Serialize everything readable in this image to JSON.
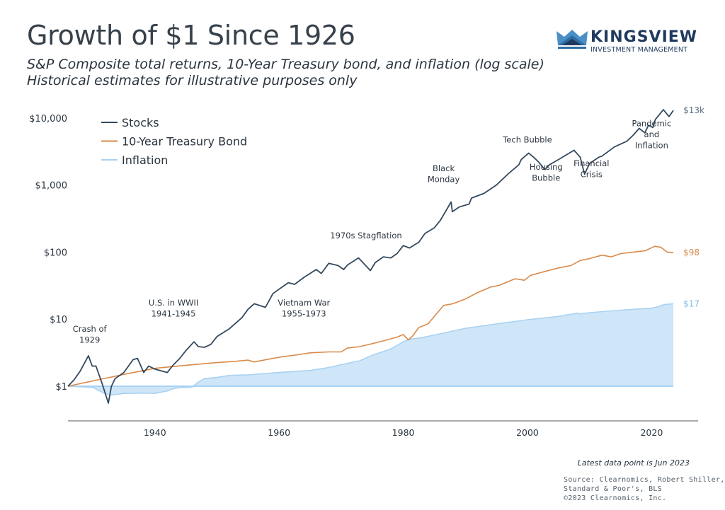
{
  "header": {
    "title": "Growth of $1 Since 1926",
    "subtitle_line1": "S&P Composite total returns, 10-Year Treasury bond, and inflation (log scale)",
    "subtitle_line2": "Historical estimates for illustrative purposes only"
  },
  "logo": {
    "name": "KINGSVIEW",
    "tagline": "INVESTMENT MANAGEMENT",
    "colors": {
      "dark": "#1f3a5f",
      "mid": "#2e6da4",
      "light": "#4a90c8"
    }
  },
  "footer": {
    "latest_note": "Latest data point is Jun 2023",
    "source_lines": [
      "Source: Clearnomics, Robert Shiller,",
      "Standard & Poor's, BLS",
      "©2023 Clearnomics, Inc."
    ]
  },
  "chart_data": {
    "type": "line",
    "title": "Growth of $1 Since 1926",
    "xlabel": "",
    "ylabel": "",
    "yscale": "log",
    "xlim": [
      1926,
      2023.5
    ],
    "ylim": [
      0.3,
      20000
    ],
    "x_ticks": [
      1940,
      1960,
      1980,
      2000,
      2020
    ],
    "y_ticks": [
      {
        "value": 1,
        "label": "$1"
      },
      {
        "value": 10,
        "label": "$10"
      },
      {
        "value": 100,
        "label": "$100"
      },
      {
        "value": 1000,
        "label": "$1,000"
      },
      {
        "value": 10000,
        "label": "$10,000"
      }
    ],
    "grid": false,
    "legend_position": "top-left",
    "series": [
      {
        "name": "Stocks",
        "color": "#34495e",
        "style": "line",
        "end_label": "$13k",
        "x": [
          1926,
          1927,
          1928,
          1929.3,
          1929.9,
          1930.5,
          1931.5,
          1932.5,
          1933,
          1933.6,
          1935,
          1936.5,
          1937.2,
          1938.2,
          1939,
          1940,
          1941,
          1942,
          1943,
          1944,
          1945,
          1946.3,
          1947,
          1948,
          1949,
          1950,
          1952,
          1954,
          1955,
          1956,
          1957.8,
          1959,
          1960,
          1961.5,
          1962.5,
          1964,
          1966,
          1966.8,
          1968,
          1969.5,
          1970.4,
          1971,
          1972.8,
          1974.7,
          1975.5,
          1976.8,
          1978,
          1979,
          1980,
          1981,
          1982.5,
          1983.5,
          1985,
          1986,
          1987.7,
          1987.9,
          1989,
          1990.6,
          1991,
          1993,
          1995,
          1997,
          1998.6,
          1999,
          2000.2,
          2001,
          2001.8,
          2002.8,
          2003.5,
          2005,
          2007.5,
          2008.5,
          2009.2,
          2010,
          2011.5,
          2012,
          2014,
          2016,
          2017,
          2018,
          2018.9,
          2019.5,
          2020.2,
          2020.6,
          2021.9,
          2022.8,
          2023.5
        ],
        "y": [
          1,
          1.25,
          1.7,
          2.85,
          2.0,
          2.0,
          1.1,
          0.56,
          1.0,
          1.3,
          1.6,
          2.5,
          2.6,
          1.6,
          2.0,
          1.8,
          1.7,
          1.6,
          2.1,
          2.6,
          3.4,
          4.6,
          3.9,
          3.8,
          4.2,
          5.5,
          7.2,
          10.5,
          14,
          17,
          15,
          24,
          28,
          35,
          33,
          42,
          55,
          48,
          68,
          63,
          55,
          64,
          82,
          53,
          70,
          85,
          82,
          95,
          125,
          115,
          140,
          190,
          230,
          300,
          560,
          400,
          470,
          520,
          640,
          750,
          1000,
          1500,
          2000,
          2400,
          3000,
          2600,
          2200,
          1700,
          2000,
          2400,
          3300,
          2600,
          1450,
          2100,
          2600,
          2700,
          3700,
          4500,
          5500,
          7000,
          6000,
          7800,
          7200,
          9500,
          13300,
          10500,
          13000
        ]
      },
      {
        "name": "10-Year Treasury Bond",
        "color": "#d98a4a",
        "style": "line",
        "end_label": "$98",
        "x": [
          1926,
          1930,
          1935,
          1940,
          1945,
          1950,
          1953,
          1955,
          1956,
          1958,
          1960,
          1963,
          1965,
          1968,
          1970,
          1971,
          1973,
          1975,
          1977,
          1979,
          1980,
          1980.8,
          1981.5,
          1982.5,
          1984,
          1985,
          1986.5,
          1988,
          1990,
          1992,
          1994,
          1995.5,
          1998,
          1999.5,
          2000.5,
          2003,
          2005,
          2007,
          2008.5,
          2010,
          2012,
          2013.5,
          2015,
          2017,
          2019,
          2020.5,
          2021.5,
          2022.5,
          2023.5
        ],
        "y": [
          1,
          1.2,
          1.5,
          1.85,
          2.05,
          2.25,
          2.35,
          2.45,
          2.3,
          2.5,
          2.7,
          2.95,
          3.15,
          3.25,
          3.25,
          3.7,
          3.9,
          4.3,
          4.8,
          5.4,
          5.9,
          4.9,
          5.6,
          7.5,
          8.5,
          11,
          16,
          17,
          20,
          25,
          30,
          32,
          40,
          38,
          45,
          52,
          58,
          63,
          75,
          80,
          90,
          85,
          95,
          100,
          105,
          122,
          118,
          100,
          98
        ]
      },
      {
        "name": "Inflation",
        "color": "#a9d2f2",
        "fill": "#cfe6f8",
        "style": "area",
        "end_label": "$17",
        "x": [
          1926,
          1928,
          1930,
          1931,
          1932,
          1933,
          1935,
          1938,
          1940,
          1942,
          1943,
          1944,
          1946,
          1947,
          1948,
          1950,
          1952,
          1955,
          1960,
          1965,
          1968,
          1970,
          1973,
          1975,
          1978,
          1980,
          1981,
          1983,
          1985,
          1990,
          1995,
          2000,
          2005,
          2008,
          2008.5,
          2010,
          2015,
          2020,
          2021,
          2022,
          2023.5
        ],
        "y": [
          1,
          0.98,
          0.96,
          0.86,
          0.77,
          0.74,
          0.78,
          0.79,
          0.78,
          0.85,
          0.92,
          0.95,
          0.97,
          1.15,
          1.3,
          1.35,
          1.45,
          1.48,
          1.6,
          1.72,
          1.9,
          2.1,
          2.4,
          2.9,
          3.6,
          4.6,
          5.0,
          5.3,
          5.8,
          7.3,
          8.5,
          9.8,
          11,
          12.3,
          12.0,
          12.5,
          13.6,
          14.6,
          15.3,
          16.5,
          17
        ]
      }
    ],
    "annotations": [
      {
        "text": [
          "Crash of",
          "1929"
        ],
        "x": 1929.5,
        "y_value": 6.5
      },
      {
        "text": [
          "U.S. in WWII",
          "1941-1945"
        ],
        "x": 1943,
        "y_value": 16
      },
      {
        "text": [
          "Vietnam War",
          "1955-1973"
        ],
        "x": 1964,
        "y_value": 16
      },
      {
        "text": [
          "1970s Stagflation"
        ],
        "x": 1974,
        "y_value": 160
      },
      {
        "text": [
          "Black",
          "Monday"
        ],
        "x": 1986.5,
        "y_value": 1600
      },
      {
        "text": [
          "Tech Bubble"
        ],
        "x": 2000,
        "y_value": 4300
      },
      {
        "text": [
          "Housing",
          "Bubble"
        ],
        "x": 2003,
        "y_value": 1700
      },
      {
        "text": [
          "Financial",
          "Crisis"
        ],
        "x": 2010.3,
        "y_value": 1900
      },
      {
        "text": [
          "Pandemic",
          "and",
          "Inflation"
        ],
        "x": 2020,
        "y_value": 7500
      }
    ]
  }
}
